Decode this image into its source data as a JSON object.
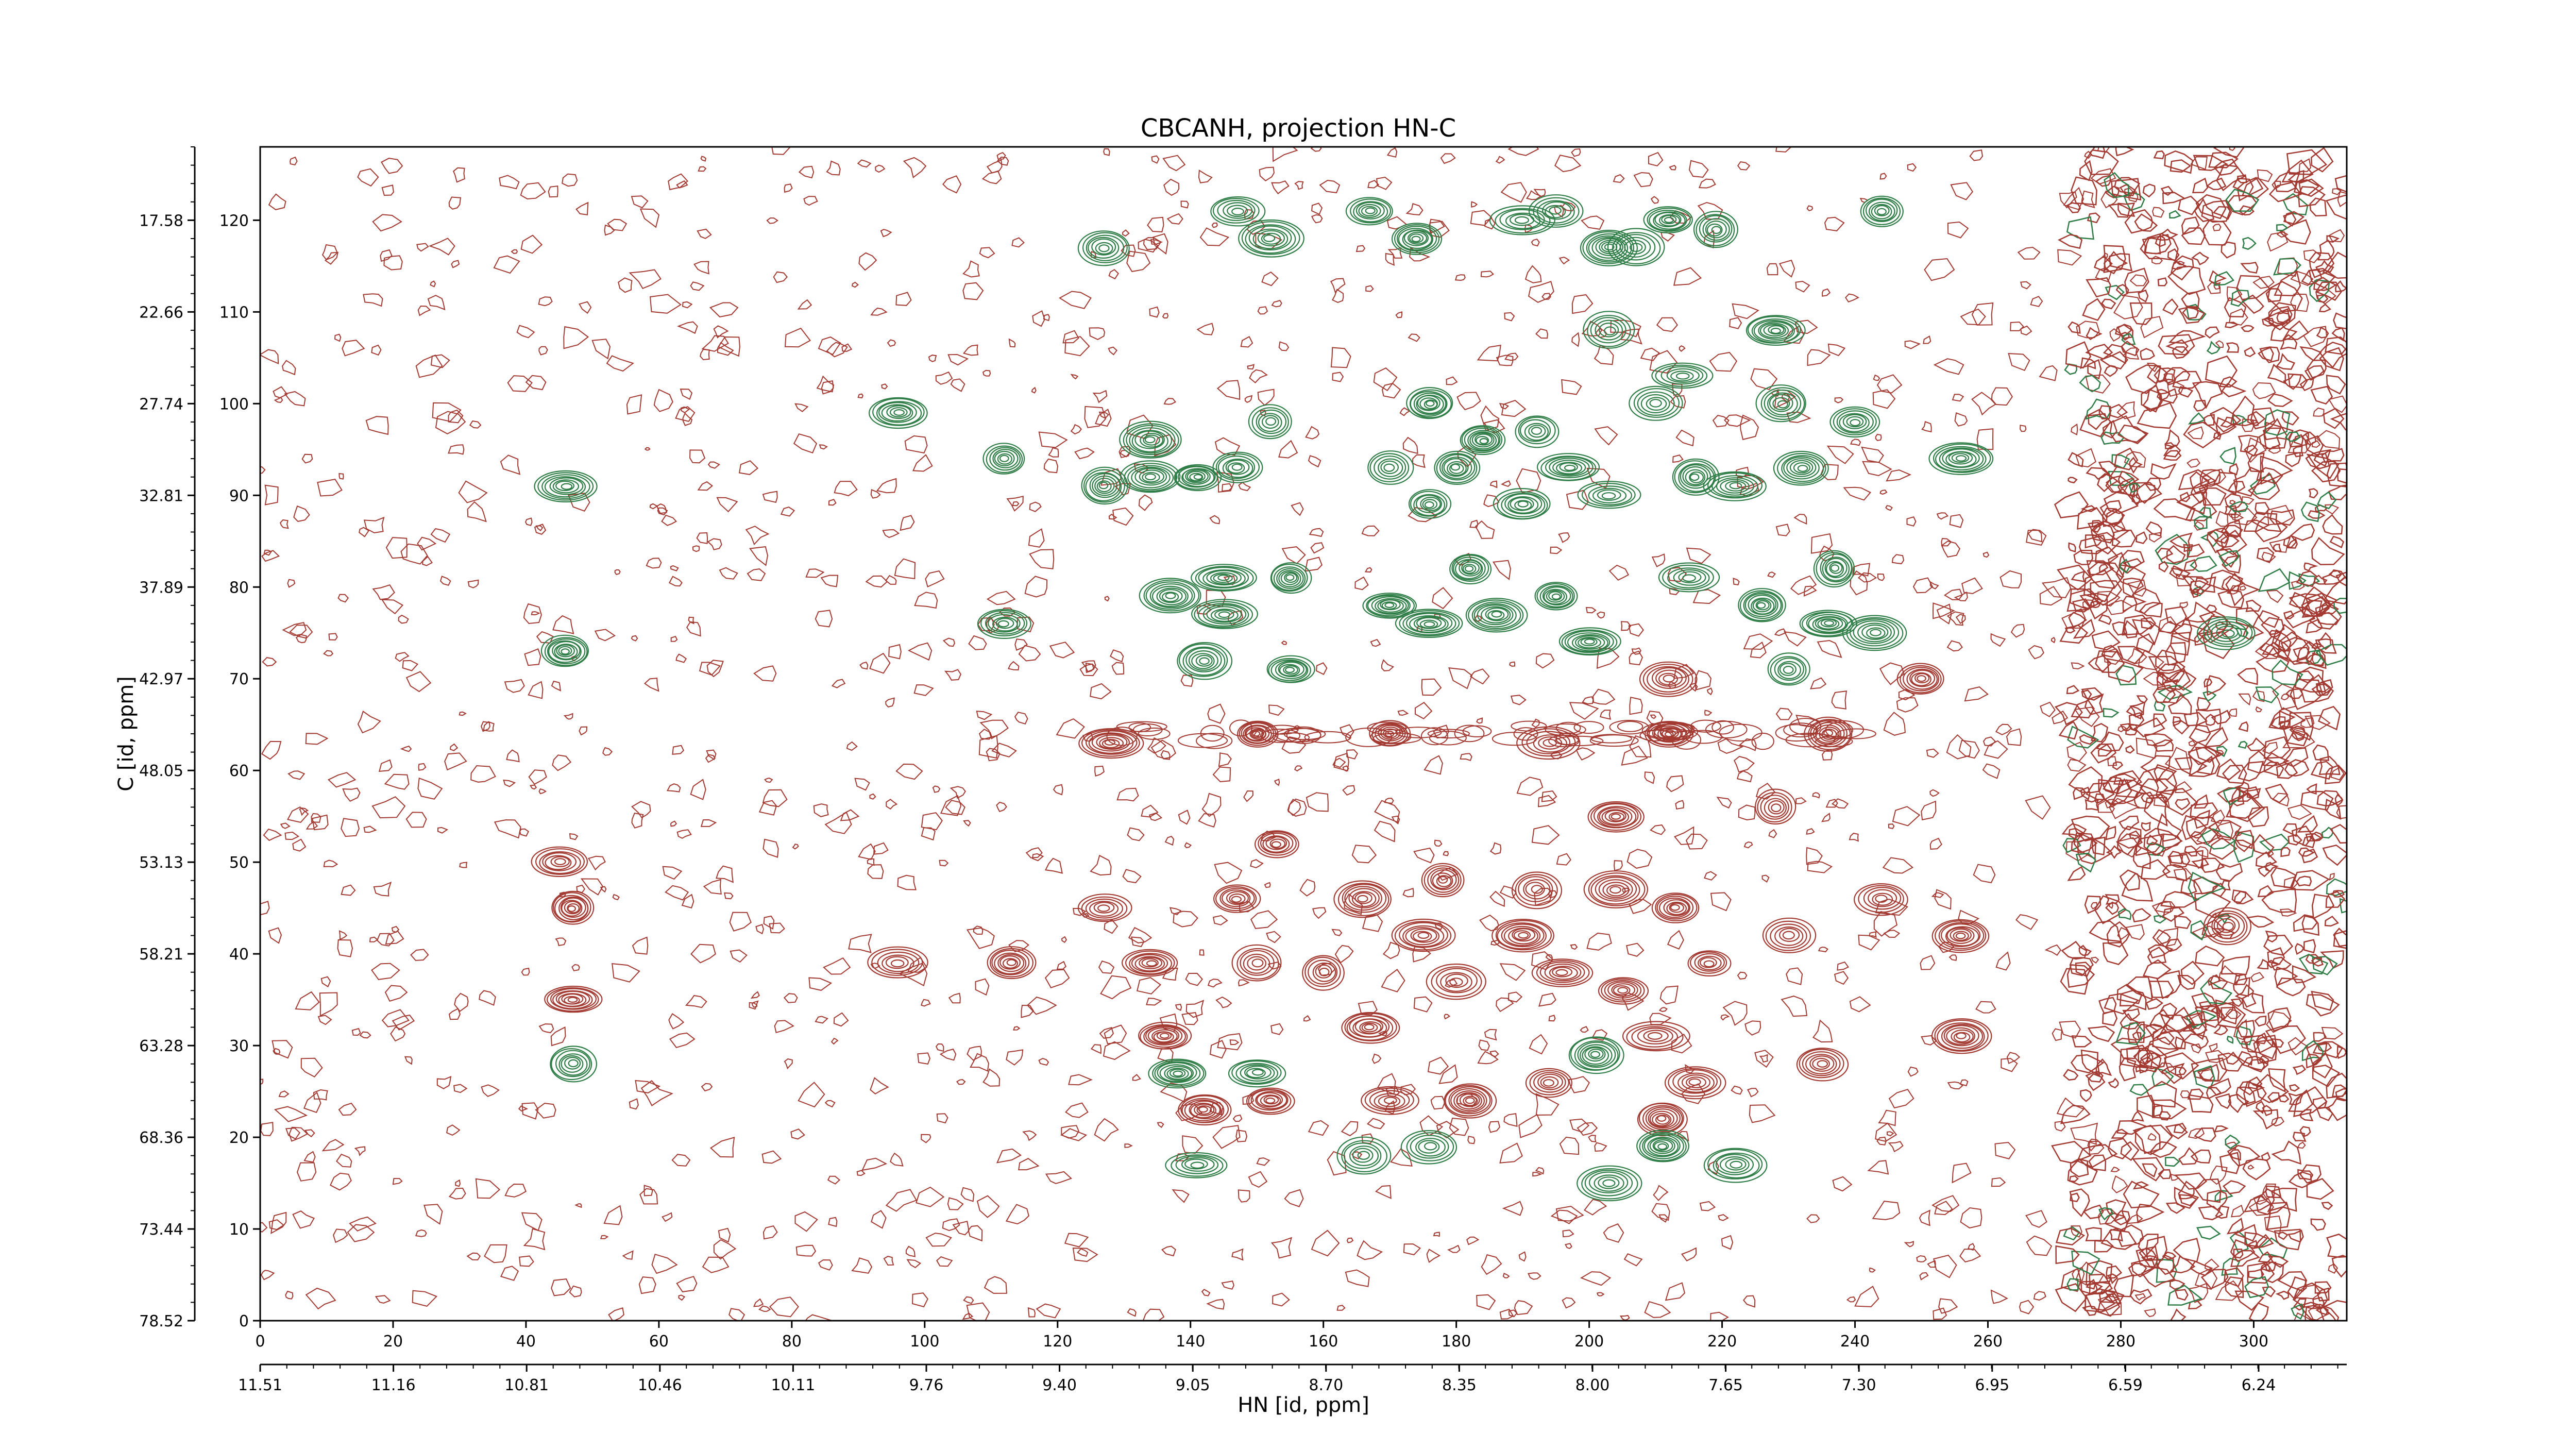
{
  "chart_data": {
    "type": "contour",
    "title": "CBCANH, projection HN-C",
    "xlabel": "HN [id, ppm]",
    "ylabel": "C [id, ppm]",
    "xlim": [
      0,
      314
    ],
    "ylim": [
      0,
      128
    ],
    "x_ticks_index": [
      "0",
      "20",
      "40",
      "60",
      "80",
      "100",
      "120",
      "140",
      "160",
      "180",
      "200",
      "220",
      "240",
      "260",
      "280",
      "300"
    ],
    "x_ticks_ppm": [
      "11.51",
      "11.16",
      "10.81",
      "10.46",
      "10.11",
      "9.76",
      "9.40",
      "9.05",
      "8.70",
      "8.35",
      "8.00",
      "7.65",
      "7.30",
      "6.95",
      "6.59",
      "6.24"
    ],
    "y_ticks_index": [
      "0",
      "10",
      "20",
      "30",
      "40",
      "50",
      "60",
      "70",
      "80",
      "90",
      "100",
      "110",
      "120"
    ],
    "y_ticks_ppm": [
      "78.52",
      "73.44",
      "68.36",
      "63.28",
      "58.21",
      "53.13",
      "48.05",
      "42.97",
      "37.89",
      "32.81",
      "27.74",
      "22.66",
      "17.58"
    ],
    "colors": {
      "positive": "#a33a32",
      "negative": "#2e7d46"
    },
    "series": [
      {
        "sign": "positive",
        "peaks": [
          {
            "x": 45,
            "y": 50
          },
          {
            "x": 47,
            "y": 45
          },
          {
            "x": 47,
            "y": 35
          },
          {
            "x": 96,
            "y": 39
          },
          {
            "x": 113,
            "y": 39
          },
          {
            "x": 127,
            "y": 45
          },
          {
            "x": 134,
            "y": 39
          },
          {
            "x": 136,
            "y": 31
          },
          {
            "x": 142,
            "y": 23
          },
          {
            "x": 147,
            "y": 46
          },
          {
            "x": 150,
            "y": 39
          },
          {
            "x": 152,
            "y": 24
          },
          {
            "x": 153,
            "y": 52
          },
          {
            "x": 160,
            "y": 38
          },
          {
            "x": 166,
            "y": 46
          },
          {
            "x": 167,
            "y": 32
          },
          {
            "x": 170,
            "y": 24
          },
          {
            "x": 175,
            "y": 42
          },
          {
            "x": 178,
            "y": 48
          },
          {
            "x": 180,
            "y": 37
          },
          {
            "x": 182,
            "y": 24
          },
          {
            "x": 190,
            "y": 42
          },
          {
            "x": 192,
            "y": 47
          },
          {
            "x": 194,
            "y": 26
          },
          {
            "x": 194,
            "y": 63
          },
          {
            "x": 196,
            "y": 38
          },
          {
            "x": 204,
            "y": 47
          },
          {
            "x": 204,
            "y": 55
          },
          {
            "x": 205,
            "y": 36
          },
          {
            "x": 210,
            "y": 31
          },
          {
            "x": 211,
            "y": 22
          },
          {
            "x": 213,
            "y": 45
          },
          {
            "x": 216,
            "y": 26
          },
          {
            "x": 218,
            "y": 39
          },
          {
            "x": 228,
            "y": 56
          },
          {
            "x": 230,
            "y": 42
          },
          {
            "x": 235,
            "y": 28
          },
          {
            "x": 244,
            "y": 46
          },
          {
            "x": 256,
            "y": 42
          },
          {
            "x": 256,
            "y": 31
          },
          {
            "x": 296,
            "y": 43
          },
          {
            "x": 128,
            "y": 63
          },
          {
            "x": 150,
            "y": 64
          },
          {
            "x": 170,
            "y": 64
          },
          {
            "x": 212,
            "y": 64
          },
          {
            "x": 236,
            "y": 64
          },
          {
            "x": 212,
            "y": 70
          },
          {
            "x": 250,
            "y": 70
          }
        ]
      },
      {
        "sign": "negative",
        "peaks": [
          {
            "x": 46,
            "y": 91
          },
          {
            "x": 46,
            "y": 73
          },
          {
            "x": 47,
            "y": 28
          },
          {
            "x": 96,
            "y": 99
          },
          {
            "x": 112,
            "y": 94
          },
          {
            "x": 112,
            "y": 76
          },
          {
            "x": 127,
            "y": 117
          },
          {
            "x": 127,
            "y": 91
          },
          {
            "x": 134,
            "y": 96
          },
          {
            "x": 134,
            "y": 92
          },
          {
            "x": 137,
            "y": 79
          },
          {
            "x": 141,
            "y": 92
          },
          {
            "x": 142,
            "y": 72
          },
          {
            "x": 145,
            "y": 81
          },
          {
            "x": 145,
            "y": 77
          },
          {
            "x": 147,
            "y": 121
          },
          {
            "x": 147,
            "y": 93
          },
          {
            "x": 152,
            "y": 118
          },
          {
            "x": 152,
            "y": 98
          },
          {
            "x": 155,
            "y": 81
          },
          {
            "x": 155,
            "y": 71
          },
          {
            "x": 167,
            "y": 121
          },
          {
            "x": 170,
            "y": 93
          },
          {
            "x": 170,
            "y": 78
          },
          {
            "x": 174,
            "y": 118
          },
          {
            "x": 176,
            "y": 100
          },
          {
            "x": 176,
            "y": 89
          },
          {
            "x": 176,
            "y": 76
          },
          {
            "x": 180,
            "y": 93
          },
          {
            "x": 182,
            "y": 82
          },
          {
            "x": 184,
            "y": 96
          },
          {
            "x": 186,
            "y": 77
          },
          {
            "x": 190,
            "y": 120
          },
          {
            "x": 190,
            "y": 89
          },
          {
            "x": 192,
            "y": 97
          },
          {
            "x": 195,
            "y": 121
          },
          {
            "x": 195,
            "y": 79
          },
          {
            "x": 197,
            "y": 93
          },
          {
            "x": 200,
            "y": 74
          },
          {
            "x": 203,
            "y": 117
          },
          {
            "x": 203,
            "y": 108
          },
          {
            "x": 203,
            "y": 90
          },
          {
            "x": 207,
            "y": 117
          },
          {
            "x": 210,
            "y": 100
          },
          {
            "x": 212,
            "y": 120
          },
          {
            "x": 214,
            "y": 103
          },
          {
            "x": 215,
            "y": 81
          },
          {
            "x": 216,
            "y": 92
          },
          {
            "x": 219,
            "y": 119
          },
          {
            "x": 222,
            "y": 91
          },
          {
            "x": 226,
            "y": 78
          },
          {
            "x": 228,
            "y": 108
          },
          {
            "x": 229,
            "y": 100
          },
          {
            "x": 230,
            "y": 71
          },
          {
            "x": 232,
            "y": 93
          },
          {
            "x": 236,
            "y": 76
          },
          {
            "x": 237,
            "y": 82
          },
          {
            "x": 240,
            "y": 98
          },
          {
            "x": 243,
            "y": 75
          },
          {
            "x": 244,
            "y": 121
          },
          {
            "x": 256,
            "y": 94
          },
          {
            "x": 296,
            "y": 75
          },
          {
            "x": 201,
            "y": 29
          },
          {
            "x": 203,
            "y": 15
          },
          {
            "x": 211,
            "y": 19
          },
          {
            "x": 222,
            "y": 17
          },
          {
            "x": 166,
            "y": 18
          },
          {
            "x": 176,
            "y": 19
          },
          {
            "x": 141,
            "y": 17
          },
          {
            "x": 138,
            "y": 27
          },
          {
            "x": 150,
            "y": 27
          }
        ]
      }
    ]
  }
}
